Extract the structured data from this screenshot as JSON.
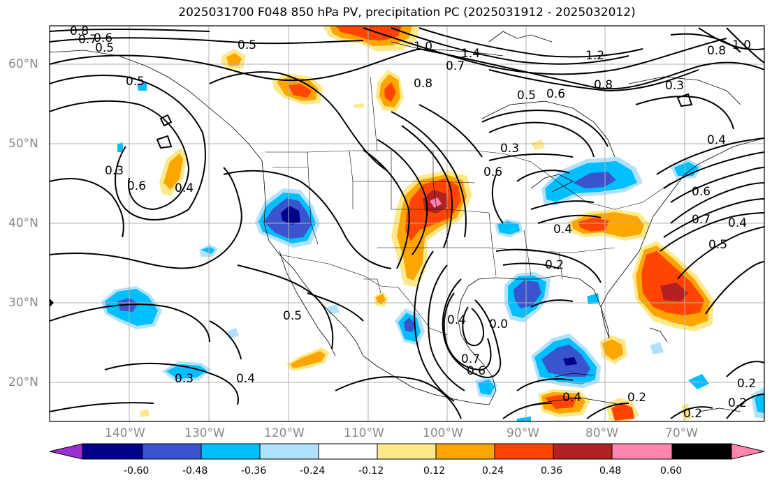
{
  "title": "2025031700 F048 850 hPa PV, precipitation PC (2025031912 - 2025032012)",
  "lat_labels": [
    "60°N",
    "50°N",
    "40°N",
    "30°N",
    "20°N"
  ],
  "lon_labels": [
    "140°W",
    "130°W",
    "120°W",
    "110°W",
    "100°W",
    "90°W",
    "80°W",
    "70°W"
  ],
  "colorbar": {
    "ticks": [
      "-0.60",
      "-0.48",
      "-0.36",
      "-0.24",
      "-0.12",
      "0.12",
      "0.24",
      "0.36",
      "0.48",
      "0.60"
    ],
    "colors": [
      "#9b30d0",
      "#00008b",
      "#3a54d0",
      "#00bfff",
      "#b0e2ff",
      "#ffffff",
      "#fde98a",
      "#ffa500",
      "#ff4500",
      "#b22222",
      "#ff85b0"
    ]
  },
  "contour_labels": [
    "0.8",
    "0.7",
    "0.6",
    "0.5",
    "0.5",
    "1.0",
    "1.4",
    "0.7",
    "1.2",
    "0.8",
    "0.8",
    "1.0",
    "0.5",
    "0.6",
    "0.8",
    "0.3",
    "0.5",
    "0.3",
    "0.6",
    "0.4",
    "0.3",
    "0.6",
    "0.4",
    "0.6",
    "0.4",
    "0.7",
    "0.5",
    "0.4",
    "0.2",
    "0.4",
    "0.7",
    "0.6",
    "0.0",
    "0.5",
    "0.4",
    "0.3",
    "0.4",
    "0.2",
    "0.2",
    "0.2",
    "0.2"
  ]
}
